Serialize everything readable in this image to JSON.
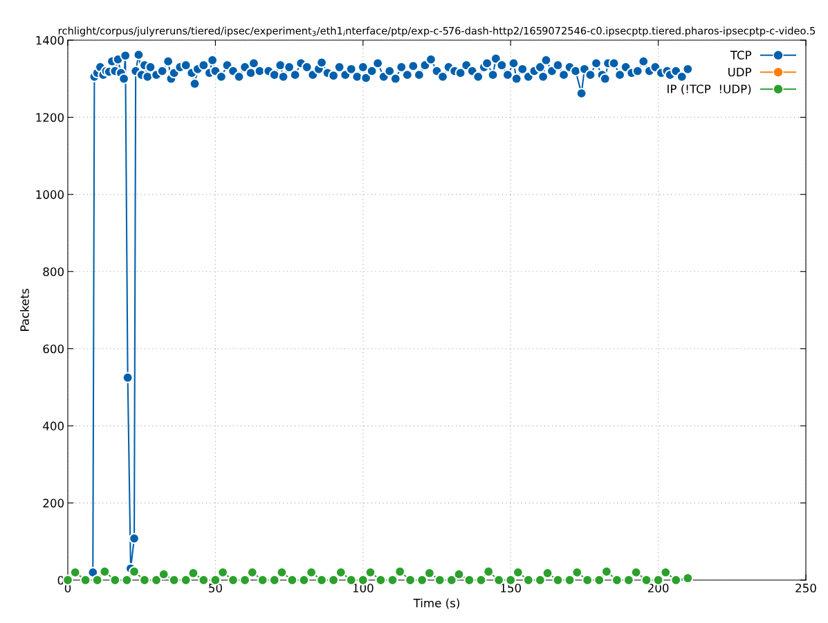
{
  "chart_data": {
    "type": "line",
    "title": "rchlight/corpus/julyreruns/tiered/ipsec/experiment$_{3}$/eth1$_{i}$nterface/ptp/exp-c-576-dash-http2/1659072546-c0.ipsecptp.tiered.pharos-ipsecptp-c-video.5",
    "xlabel": "Time (s)",
    "ylabel": "Packets",
    "xlim": [
      0,
      250
    ],
    "xticks": [
      0,
      50,
      100,
      150,
      200,
      250
    ],
    "ylim": [
      0,
      1400
    ],
    "yticks": [
      0,
      200,
      400,
      600,
      800,
      1000,
      1200,
      1400
    ],
    "grid": true,
    "legend": "top right",
    "marker": "circle",
    "line_style": "solid",
    "series": [
      {
        "name": "TCP",
        "color": "#0060ad",
        "x": [
          8.5,
          9,
          10,
          11,
          12,
          13,
          14,
          15,
          16,
          17,
          18,
          19,
          19.5,
          20.3,
          21.3,
          22.5,
          23,
          24,
          25,
          26,
          27,
          28,
          30,
          32,
          34,
          35,
          36,
          38,
          40,
          42,
          43,
          44,
          46,
          48,
          49,
          50,
          52,
          54,
          56,
          58,
          60,
          62,
          63,
          65,
          68,
          70,
          72,
          73,
          75,
          77,
          79,
          81,
          83,
          85,
          86,
          88,
          90,
          92,
          94,
          96,
          98,
          100,
          101,
          103,
          105,
          107,
          109,
          111,
          113,
          115,
          117,
          119,
          121,
          123,
          125,
          127,
          129,
          131,
          133,
          135,
          137,
          139,
          141,
          142,
          144,
          145,
          147,
          149,
          151,
          152,
          154,
          156,
          158,
          160,
          161,
          162,
          164,
          166,
          168,
          170,
          172,
          174,
          175,
          177,
          179,
          181,
          182,
          183,
          185,
          187,
          189,
          191,
          193,
          195,
          197,
          199,
          201,
          203,
          204,
          206,
          208,
          210
        ],
        "values": [
          20,
          1305,
          1315,
          1330,
          1310,
          1320,
          1318,
          1345,
          1320,
          1350,
          1315,
          1300,
          1360,
          525,
          30,
          108,
          1320,
          1362,
          1310,
          1335,
          1305,
          1330,
          1310,
          1320,
          1345,
          1300,
          1315,
          1330,
          1335,
          1315,
          1287,
          1325,
          1335,
          1315,
          1348,
          1320,
          1305,
          1335,
          1320,
          1305,
          1330,
          1315,
          1340,
          1320,
          1320,
          1310,
          1335,
          1305,
          1330,
          1310,
          1340,
          1330,
          1310,
          1325,
          1342,
          1315,
          1308,
          1330,
          1310,
          1325,
          1305,
          1330,
          1302,
          1320,
          1340,
          1305,
          1320,
          1300,
          1330,
          1310,
          1333,
          1310,
          1335,
          1350,
          1320,
          1305,
          1330,
          1320,
          1315,
          1335,
          1320,
          1305,
          1330,
          1340,
          1310,
          1352,
          1335,
          1310,
          1340,
          1300,
          1325,
          1305,
          1320,
          1330,
          1305,
          1348,
          1320,
          1335,
          1310,
          1330,
          1320,
          1262,
          1325,
          1310,
          1340,
          1310,
          1300,
          1340,
          1340,
          1310,
          1330,
          1315,
          1320,
          1345,
          1320,
          1330,
          1315,
          1320,
          1310,
          1320,
          1305,
          1325
        ]
      },
      {
        "name": "UDP",
        "color": "#ff7f0e"
      },
      {
        "name": "IP (!TCP  !UDP)",
        "color": "#2ca02c",
        "x": [
          0,
          2.5,
          6,
          10,
          12.5,
          16,
          20,
          22.5,
          26,
          30,
          32.5,
          36,
          40,
          42.5,
          46,
          50,
          52.5,
          56,
          60,
          62.5,
          66,
          70,
          72.5,
          76,
          80,
          82.5,
          86,
          90,
          92.5,
          96,
          100,
          102.5,
          106,
          110,
          112.5,
          116,
          120,
          122.5,
          126,
          130,
          132.5,
          136,
          140,
          142.5,
          146,
          150,
          152.5,
          156,
          160,
          162.5,
          166,
          170,
          172.5,
          176,
          180,
          182.5,
          186,
          190,
          192.5,
          196,
          200,
          202.5,
          206,
          210
        ],
        "values": [
          0,
          20,
          0,
          0,
          22,
          0,
          0,
          22,
          0,
          0,
          15,
          0,
          0,
          18,
          0,
          0,
          20,
          0,
          0,
          20,
          0,
          0,
          20,
          0,
          0,
          20,
          0,
          0,
          20,
          0,
          0,
          20,
          0,
          0,
          22,
          0,
          0,
          18,
          0,
          0,
          15,
          0,
          0,
          22,
          0,
          0,
          20,
          0,
          0,
          18,
          0,
          0,
          20,
          0,
          0,
          22,
          0,
          0,
          20,
          0,
          0,
          20,
          0,
          5
        ]
      }
    ]
  }
}
